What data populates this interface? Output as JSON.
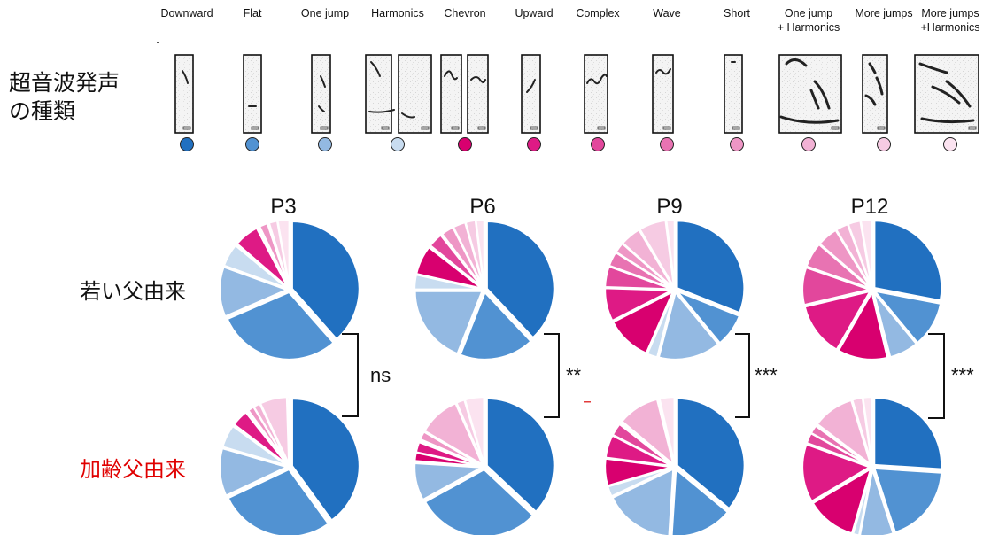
{
  "legend_title": [
    "超音波発声",
    "の種類"
  ],
  "categories": [
    {
      "label": [
        "Downward"
      ],
      "color": "#2170c0"
    },
    {
      "label": [
        "Flat"
      ],
      "color": "#5192d2"
    },
    {
      "label": [
        "One jump"
      ],
      "color": "#93b9e2"
    },
    {
      "label": [
        "Harmonics"
      ],
      "color": "#c8dcf0"
    },
    {
      "label": [
        "Chevron"
      ],
      "color": "#d8006f"
    },
    {
      "label": [
        "Upward"
      ],
      "color": "#de1a85"
    },
    {
      "label": [
        "Complex"
      ],
      "color": "#e2479c"
    },
    {
      "label": [
        "Wave"
      ],
      "color": "#e873b2"
    },
    {
      "label": [
        "Short"
      ],
      "color": "#ee96c5"
    },
    {
      "label": [
        "One jump",
        "+ Harmonics"
      ],
      "color": "#f2b2d5"
    },
    {
      "label": [
        "More jumps"
      ],
      "color": "#f6cbe3"
    },
    {
      "label": [
        "More jumps",
        "+Harmonics"
      ],
      "color": "#fbe3f0"
    }
  ],
  "rows": [
    {
      "label": "若い父由来",
      "color": "#111111"
    },
    {
      "label": "加齢父由来",
      "color": "#e00000"
    }
  ],
  "chart_data": {
    "type": "pie",
    "columns": [
      "P3",
      "P6",
      "P9",
      "P12"
    ],
    "series_order": [
      "Downward",
      "Flat",
      "One jump",
      "Harmonics",
      "Chevron",
      "Upward",
      "Complex",
      "Wave",
      "Short",
      "One jump + Harmonics",
      "More jumps",
      "More jumps +Harmonics"
    ],
    "pies": [
      {
        "age": "P3",
        "father": "若い父由来",
        "values": [
          38.5,
          30.0,
          12.0,
          5.5,
          0.3,
          6.0,
          0.3,
          0.3,
          2.0,
          0.3,
          2.0,
          2.8
        ]
      },
      {
        "age": "P3",
        "father": "加齢父由来",
        "values": [
          40.0,
          28.0,
          11.5,
          5.5,
          0.3,
          4.0,
          0.3,
          0.3,
          1.5,
          1.6,
          6.5,
          0.5
        ]
      },
      {
        "age": "P6",
        "father": "若い父由来",
        "values": [
          38.0,
          18.0,
          19.0,
          3.5,
          7.0,
          0.3,
          3.5,
          0.3,
          3.0,
          3.0,
          2.4,
          2.0
        ]
      },
      {
        "age": "P6",
        "father": "加齢父由来",
        "values": [
          37.0,
          30.0,
          9.0,
          0.3,
          2.0,
          2.5,
          0.3,
          0.3,
          2.0,
          10.0,
          2.0,
          4.6
        ]
      },
      {
        "age": "P9",
        "father": "若い父由来",
        "values": [
          31.0,
          8.0,
          15.0,
          2.5,
          11.0,
          8.0,
          5.0,
          3.5,
          2.5,
          5.0,
          6.5,
          2.0
        ]
      },
      {
        "age": "P9",
        "father": "加齢父由来",
        "values": [
          36.0,
          15.0,
          17.0,
          2.5,
          6.5,
          5.5,
          3.0,
          0.3,
          0.3,
          10.0,
          0.3,
          3.6
        ]
      },
      {
        "age": "P12",
        "father": "若い父由来",
        "values": [
          28.0,
          11.0,
          7.0,
          0.3,
          12.0,
          13.0,
          9.0,
          6.0,
          5.0,
          3.0,
          3.0,
          2.7
        ]
      },
      {
        "age": "P12",
        "father": "加齢父由来",
        "values": [
          26.0,
          19.0,
          8.0,
          1.5,
          12.0,
          14.0,
          2.5,
          2.0,
          0.3,
          10.0,
          2.5,
          2.2
        ]
      }
    ],
    "significance": [
      "ns",
      "**",
      "***",
      "***"
    ]
  }
}
